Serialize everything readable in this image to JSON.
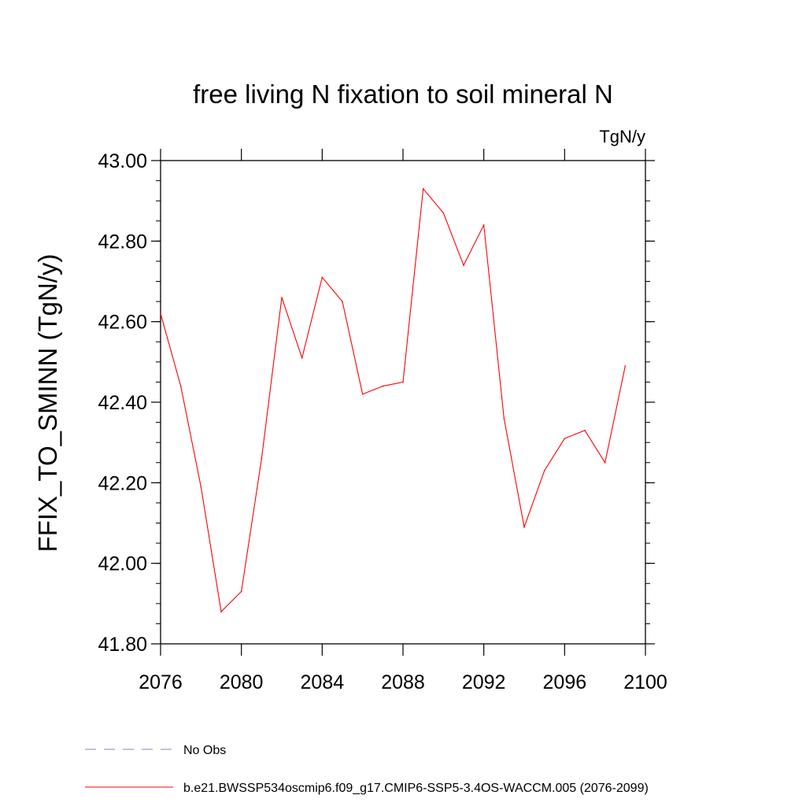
{
  "chart_data": {
    "type": "line",
    "title": "free living N fixation to soil mineral N",
    "units_label": "TgN/y",
    "ylabel": "FFIX_TO_SMINN  (TgN/y)",
    "xlabel": "",
    "xlim": [
      2076,
      2100
    ],
    "ylim": [
      41.8,
      43.0
    ],
    "x_ticks": [
      2076,
      2080,
      2084,
      2088,
      2092,
      2096,
      2100
    ],
    "x_tick_labels": [
      "2076",
      "2080",
      "2084",
      "2088",
      "2092",
      "2096",
      "2100"
    ],
    "y_ticks": [
      41.8,
      42.0,
      42.2,
      42.4,
      42.6,
      42.8,
      43.0
    ],
    "y_tick_labels": [
      "41.80",
      "42.00",
      "42.20",
      "42.40",
      "42.60",
      "42.80",
      "43.00"
    ],
    "grid": false,
    "legend_position": "bottom",
    "series": [
      {
        "name": "b.e21.BWSSP534oscmip6.f09_g17.CMIP6-SSP5-3.4OS-WACCM.005 (2076-2099)",
        "color": "#ff0000",
        "style": "solid",
        "x": [
          2076,
          2077,
          2078,
          2079,
          2080,
          2081,
          2082,
          2083,
          2084,
          2085,
          2086,
          2087,
          2088,
          2089,
          2090,
          2091,
          2092,
          2093,
          2094,
          2095,
          2096,
          2097,
          2098,
          2099
        ],
        "values": [
          42.62,
          42.44,
          42.19,
          41.88,
          41.93,
          42.26,
          42.66,
          42.51,
          42.71,
          42.65,
          42.42,
          42.44,
          42.45,
          42.93,
          42.87,
          42.74,
          42.84,
          42.36,
          42.09,
          42.23,
          42.31,
          42.33,
          42.25,
          42.49
        ]
      }
    ],
    "legend": [
      {
        "label": "No Obs",
        "color": "#8a7fc0",
        "style": "dashed"
      },
      {
        "label": "b.e21.BWSSP534oscmip6.f09_g17.CMIP6-SSP5-3.4OS-WACCM.005 (2076-2099)",
        "color": "#ff0000",
        "style": "solid"
      }
    ]
  }
}
